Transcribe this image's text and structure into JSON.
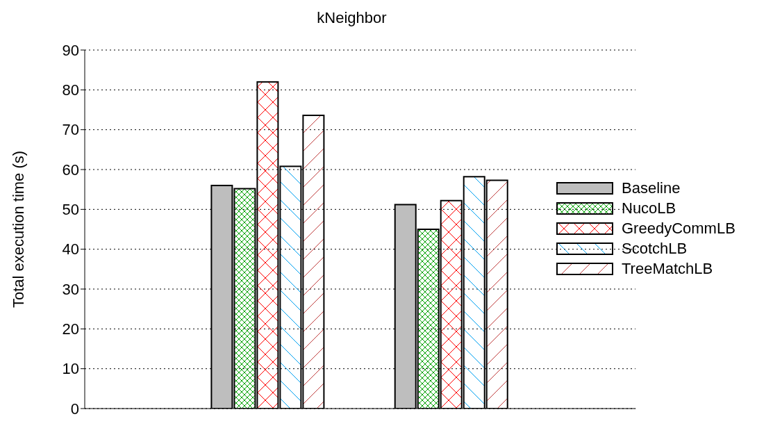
{
  "chart_data": {
    "type": "bar",
    "title": "kNeighbor",
    "ylabel": "Total execution time (s)",
    "categories": [
      null,
      null
    ],
    "series": [
      {
        "name": "Baseline",
        "color": "#bebebe",
        "values": [
          56,
          51.2
        ]
      },
      {
        "name": "NucoLB",
        "color": "#00a000",
        "values": [
          55.2,
          45
        ]
      },
      {
        "name": "GreedyCommLB",
        "color": "#ff0000",
        "values": [
          82,
          52.2
        ]
      },
      {
        "name": "ScotchLB",
        "color": "#00a0f0",
        "values": [
          60.8,
          58.2
        ]
      },
      {
        "name": "TreeMatchLB",
        "color": "#c04040",
        "values": [
          73.6,
          57.3
        ]
      }
    ],
    "ylim": [
      0,
      90
    ],
    "yticks": [
      0,
      10,
      20,
      30,
      40,
      50,
      60,
      70,
      80,
      90
    ],
    "grid": "y",
    "legend": "right"
  }
}
